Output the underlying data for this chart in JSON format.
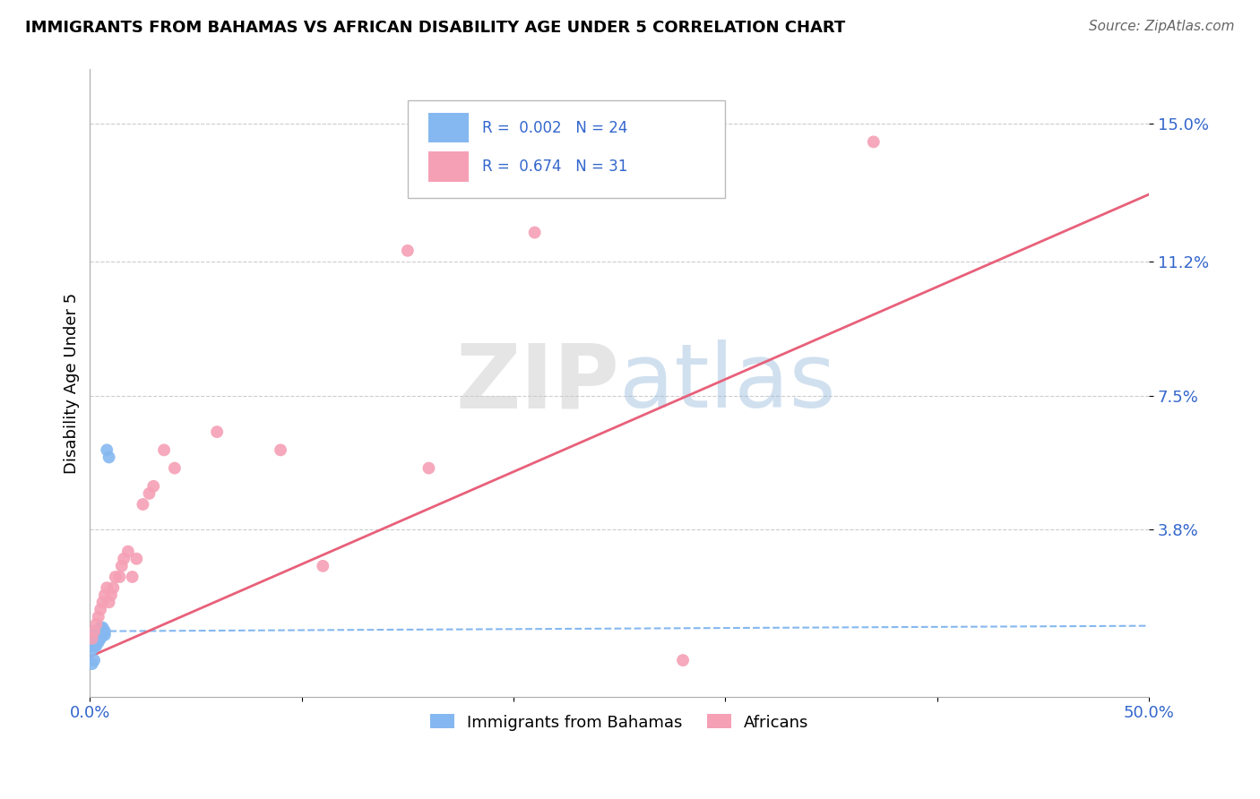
{
  "title": "IMMIGRANTS FROM BAHAMAS VS AFRICAN DISABILITY AGE UNDER 5 CORRELATION CHART",
  "source": "Source: ZipAtlas.com",
  "ylabel": "Disability Age Under 5",
  "xlim": [
    0.0,
    0.5
  ],
  "ylim": [
    -0.008,
    0.165
  ],
  "ytick_positions": [
    0.038,
    0.075,
    0.112,
    0.15
  ],
  "ytick_labels": [
    "3.8%",
    "7.5%",
    "11.2%",
    "15.0%"
  ],
  "watermark": "ZIPatlas",
  "color_bahamas": "#85B8F0",
  "color_africans": "#F5A0B5",
  "color_line_bahamas": "#85B8F0",
  "color_line_africans": "#E8607A",
  "grid_color": "#CCCCCC",
  "bah_slope": 0.003,
  "bah_intercept": 0.01,
  "af_slope": 0.255,
  "af_intercept": 0.003,
  "bahamas_x": [
    0.001,
    0.001,
    0.001,
    0.002,
    0.002,
    0.002,
    0.003,
    0.003,
    0.003,
    0.004,
    0.004,
    0.004,
    0.005,
    0.005,
    0.005,
    0.006,
    0.006,
    0.006,
    0.007,
    0.007,
    0.008,
    0.009,
    0.001,
    0.002
  ],
  "bahamas_y": [
    0.005,
    0.006,
    0.007,
    0.006,
    0.007,
    0.008,
    0.006,
    0.008,
    0.01,
    0.007,
    0.009,
    0.01,
    0.008,
    0.01,
    0.011,
    0.009,
    0.01,
    0.011,
    0.009,
    0.01,
    0.06,
    0.058,
    0.001,
    0.002
  ],
  "africans_x": [
    0.001,
    0.002,
    0.003,
    0.004,
    0.005,
    0.006,
    0.007,
    0.008,
    0.009,
    0.01,
    0.011,
    0.012,
    0.014,
    0.015,
    0.016,
    0.018,
    0.02,
    0.022,
    0.025,
    0.028,
    0.03,
    0.035,
    0.04,
    0.06,
    0.09,
    0.11,
    0.15,
    0.16,
    0.21,
    0.28,
    0.37
  ],
  "africans_y": [
    0.008,
    0.01,
    0.012,
    0.014,
    0.016,
    0.018,
    0.02,
    0.022,
    0.018,
    0.02,
    0.022,
    0.025,
    0.025,
    0.028,
    0.03,
    0.032,
    0.025,
    0.03,
    0.045,
    0.048,
    0.05,
    0.06,
    0.055,
    0.065,
    0.06,
    0.028,
    0.115,
    0.055,
    0.12,
    0.002,
    0.145
  ]
}
